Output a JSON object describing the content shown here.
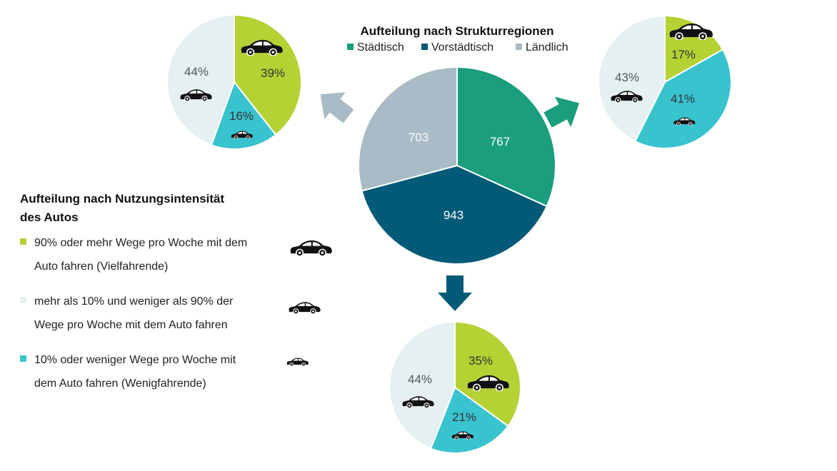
{
  "colors": {
    "staedtisch": "#1a9e7d",
    "vorstaedtisch": "#005a78",
    "laendlich": "#a8bbc6",
    "vielfahrende": "#b4d234",
    "mittel": "#e5f0f2",
    "wenigfahrende": "#38c3cf",
    "car": "#111111"
  },
  "icons": {
    "car_large": "car-large-icon",
    "car_medium": "car-medium-icon",
    "car_small": "car-small-icon",
    "arrow": "arrow-icon"
  },
  "chart_data": [
    {
      "type": "pie",
      "title": "Aufteilung nach Strukturregionen",
      "legend_position": "top",
      "categories": [
        "Städtisch",
        "Vorstädtisch",
        "Ländlich"
      ],
      "values": [
        767,
        943,
        703
      ],
      "value_labels": [
        "767",
        "943",
        "703"
      ]
    },
    {
      "type": "pie",
      "region": "Ländlich",
      "categories": [
        "Vielfahrende",
        "mittel",
        "Wenigfahrende"
      ],
      "values": [
        39,
        44,
        16
      ],
      "value_labels": [
        "39%",
        "44%",
        "16%"
      ]
    },
    {
      "type": "pie",
      "region": "Städtisch",
      "categories": [
        "Vielfahrende",
        "mittel",
        "Wenigfahrende"
      ],
      "values": [
        17,
        43,
        41
      ],
      "value_labels": [
        "17%",
        "43%",
        "41%"
      ]
    },
    {
      "type": "pie",
      "region": "Vorstädtisch",
      "categories": [
        "Vielfahrende",
        "mittel",
        "Wenigfahrende"
      ],
      "values": [
        35,
        44,
        21
      ],
      "value_labels": [
        "35%",
        "44%",
        "21%"
      ]
    }
  ],
  "intensity_legend": {
    "title_line1": "Aufteilung nach Nutzungsintensität",
    "title_line2": "des Autos",
    "items": [
      {
        "line1": "90% oder mehr Wege pro Woche mit dem",
        "line2": "Auto fahren (Vielfahrende)"
      },
      {
        "line1": "mehr als 10% und weniger als 90% der",
        "line2": "Wege pro Woche mit dem Auto fahren"
      },
      {
        "line1": "10% oder weniger Wege pro Woche mit",
        "line2": "dem Auto fahren (Wenigfahrende)"
      }
    ]
  }
}
